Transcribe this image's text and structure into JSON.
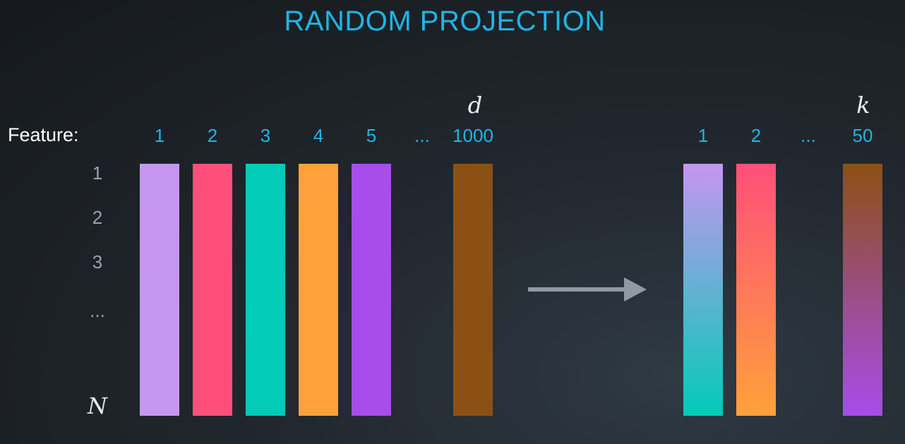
{
  "title": "RANDOM PROJECTION",
  "feature_label": "Feature:",
  "original": {
    "dimension_symbol": "d",
    "columns": [
      {
        "label": "1",
        "color": "#c596ef"
      },
      {
        "label": "2",
        "color": "#fe4f7a"
      },
      {
        "label": "3",
        "color": "#02cbb7"
      },
      {
        "label": "4",
        "color": "#ffa13a"
      },
      {
        "label": "5",
        "color": "#a84ceb"
      },
      {
        "label": "...",
        "color": null
      },
      {
        "label": "1000",
        "color": "#8c5014"
      }
    ]
  },
  "projected": {
    "dimension_symbol": "k",
    "columns": [
      {
        "label": "1",
        "gradient": [
          "#c596ef",
          "#02cbb7"
        ]
      },
      {
        "label": "2",
        "gradient": [
          "#fe4f7a",
          "#ffa13a"
        ]
      },
      {
        "label": "...",
        "gradient": null
      },
      {
        "label": "50",
        "gradient": [
          "#8c5014",
          "#a84ceb"
        ]
      }
    ]
  },
  "rows": [
    "1",
    "2",
    "3",
    "..."
  ],
  "rows_symbol": "N",
  "arrow_color": "#8f9aa5"
}
